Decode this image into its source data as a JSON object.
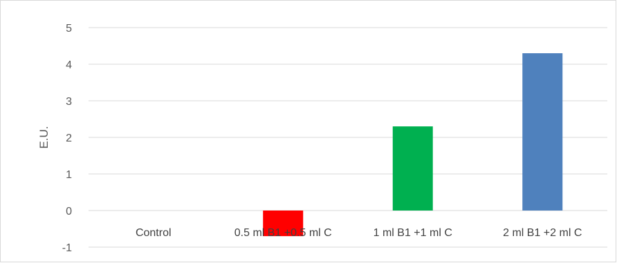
{
  "chart_data": {
    "type": "bar",
    "categories": [
      "Control",
      "0.5 ml B1 +0.5 ml C",
      "1 ml B1 +1 ml C",
      "2 ml B1 +2 ml C"
    ],
    "values": [
      0,
      -0.7,
      2.3,
      4.3
    ],
    "colors": [
      "#ffffff",
      "#ff0000",
      "#00b050",
      "#4f81bd"
    ],
    "xlabel": "",
    "ylabel": "E.U.",
    "ylim": [
      -1,
      5
    ],
    "yticks": [
      -1,
      0,
      1,
      2,
      3,
      4,
      5
    ],
    "grid": true,
    "legend": "none"
  }
}
